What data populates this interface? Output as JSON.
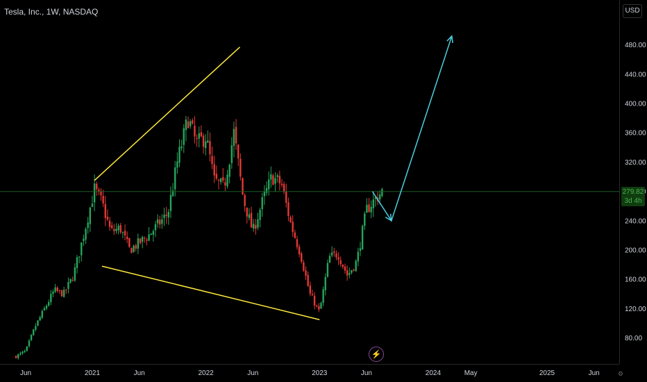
{
  "header": {
    "title": "Tesla, Inc., 1W, NASDAQ",
    "currency": "USD"
  },
  "price_tag": {
    "price": "279.82",
    "countdown": "3d 4h"
  },
  "colors": {
    "up": "#26a65b",
    "down": "#e53935",
    "trend": "#ffeb3b",
    "projection": "#4dd0e1",
    "last_price_line": "#1b5e20"
  },
  "chart_data": {
    "type": "candlestick",
    "title": "Tesla, Inc., 1W, NASDAQ",
    "ylim": [
      52,
      515
    ],
    "y_ticks": [
      480,
      440,
      400,
      360,
      320,
      280,
      240,
      200,
      160,
      120,
      80
    ],
    "y_tick_labels": [
      "480.00",
      "440.00",
      "400.00",
      "360.00",
      "320.00",
      "280.00",
      "240.00",
      "200.00",
      "160.00",
      "120.00",
      "80.00"
    ],
    "x_ticks": [
      "2020-06",
      "2021-01",
      "2021-06",
      "2022-01",
      "2022-06",
      "2023-01",
      "2023-06",
      "2024-01",
      "2024-05",
      "2025-01",
      "2025-06"
    ],
    "x_tick_labels": [
      "Jun",
      "2021",
      "Jun",
      "2022",
      "Jun",
      "2023",
      "Jun",
      "2024",
      "May",
      "2025",
      "Jun"
    ],
    "last_price": 279.82,
    "series_path": [
      [
        "2020-05-01",
        55
      ],
      [
        "2020-06-01",
        62
      ],
      [
        "2020-07-01",
        95
      ],
      [
        "2020-08-01",
        120
      ],
      [
        "2020-09-01",
        145
      ],
      [
        "2020-10-01",
        140
      ],
      [
        "2020-11-01",
        165
      ],
      [
        "2020-12-01",
        215
      ],
      [
        "2021-01-08",
        283
      ],
      [
        "2021-02-01",
        265
      ],
      [
        "2021-03-01",
        225
      ],
      [
        "2021-04-01",
        230
      ],
      [
        "2021-05-01",
        200
      ],
      [
        "2021-06-01",
        210
      ],
      [
        "2021-07-01",
        220
      ],
      [
        "2021-08-01",
        235
      ],
      [
        "2021-09-01",
        250
      ],
      [
        "2021-10-01",
        320
      ],
      [
        "2021-11-05",
        380
      ],
      [
        "2021-12-01",
        345
      ],
      [
        "2022-01-01",
        355
      ],
      [
        "2022-01-28",
        295
      ],
      [
        "2022-02-28",
        285
      ],
      [
        "2022-04-01",
        360
      ],
      [
        "2022-05-01",
        270
      ],
      [
        "2022-06-01",
        225
      ],
      [
        "2022-07-01",
        265
      ],
      [
        "2022-08-01",
        300
      ],
      [
        "2022-09-01",
        290
      ],
      [
        "2022-10-01",
        235
      ],
      [
        "2022-11-01",
        195
      ],
      [
        "2022-12-01",
        140
      ],
      [
        "2023-01-01",
        115
      ],
      [
        "2023-02-01",
        190
      ],
      [
        "2023-03-01",
        195
      ],
      [
        "2023-04-01",
        165
      ],
      [
        "2023-05-01",
        185
      ],
      [
        "2023-06-01",
        255
      ],
      [
        "2023-06-30",
        270
      ],
      [
        "2023-07-21",
        279.82
      ]
    ],
    "trendlines": [
      {
        "from": [
          "2021-01-08",
          295
        ],
        "to": [
          "2022-04-20",
          477
        ]
      },
      {
        "from": [
          "2021-02-01",
          178
        ],
        "to": [
          "2023-01-01",
          105
        ]
      }
    ],
    "projection": [
      [
        "2023-06-20",
        280
      ],
      [
        "2023-08-20",
        240
      ],
      [
        "2024-03-01",
        492
      ]
    ]
  }
}
